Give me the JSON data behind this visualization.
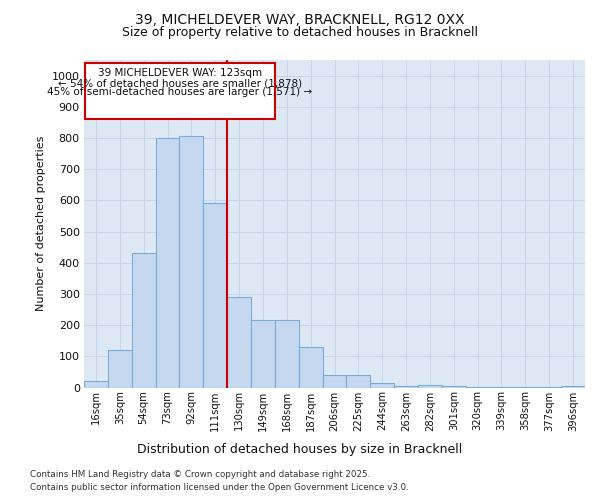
{
  "title_line1": "39, MICHELDEVER WAY, BRACKNELL, RG12 0XX",
  "title_line2": "Size of property relative to detached houses in Bracknell",
  "xlabel": "Distribution of detached houses by size in Bracknell",
  "ylabel": "Number of detached properties",
  "categories": [
    "16sqm",
    "35sqm",
    "54sqm",
    "73sqm",
    "92sqm",
    "111sqm",
    "130sqm",
    "149sqm",
    "168sqm",
    "187sqm",
    "206sqm",
    "225sqm",
    "244sqm",
    "263sqm",
    "282sqm",
    "301sqm",
    "320sqm",
    "339sqm",
    "358sqm",
    "377sqm",
    "396sqm"
  ],
  "values": [
    20,
    120,
    430,
    800,
    805,
    590,
    290,
    215,
    215,
    130,
    40,
    40,
    15,
    5,
    8,
    5,
    3,
    2,
    2,
    2,
    5
  ],
  "bar_color": "#c5d8f0",
  "bar_edge_color": "#7badd4",
  "grid_color": "#c8d4e8",
  "background_color": "#dde8f5",
  "annotation_box_color": "#ffffff",
  "annotation_border_color": "#cc0000",
  "annotation_text_line1": "39 MICHELDEVER WAY: 123sqm",
  "annotation_text_line2": "← 54% of detached houses are smaller (1,878)",
  "annotation_text_line3": "45% of semi-detached houses are larger (1,571) →",
  "ylim": [
    0,
    1050
  ],
  "yticks": [
    0,
    100,
    200,
    300,
    400,
    500,
    600,
    700,
    800,
    900,
    1000
  ],
  "footer_line1": "Contains HM Land Registry data © Crown copyright and database right 2025.",
  "footer_line2": "Contains public sector information licensed under the Open Government Licence v3.0.",
  "red_line_color": "#cc0000",
  "fig_background": "#ffffff",
  "red_line_x": 5.5
}
